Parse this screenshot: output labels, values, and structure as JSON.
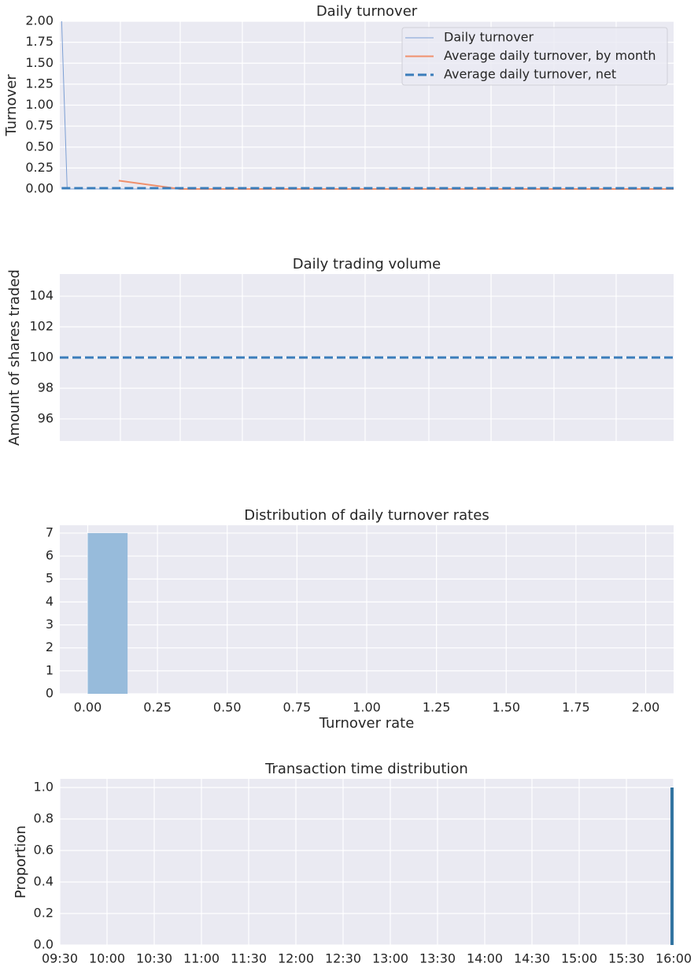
{
  "chart_data": [
    {
      "type": "line",
      "title": "Daily turnover",
      "ylabel": "Turnover",
      "x": [
        0.3,
        1.2,
        9.6,
        19.6,
        100
      ],
      "xlim": [
        0,
        100
      ],
      "ylim": [
        0,
        2
      ],
      "yticks": [
        {
          "value": 0,
          "label": "0.00"
        },
        0.25,
        {
          "value": 0.5,
          "label": "0.50"
        },
        0.75,
        {
          "value": 1,
          "label": "1.00"
        },
        1.25,
        {
          "value": 1.5,
          "label": "1.50"
        },
        1.75,
        {
          "value": 2,
          "label": "2.00"
        }
      ],
      "grid": true,
      "legend": "upper right",
      "series": [
        {
          "name": "Daily turnover",
          "color": "#7c9fd4",
          "linestyle": "solid",
          "linewidth": 1,
          "values": [
            2.0,
            0.0,
            0.0,
            0.0,
            0.0
          ]
        },
        {
          "name": "Average daily turnover, by month",
          "color": "#f0906c",
          "linestyle": "solid",
          "linewidth": 2,
          "values": [
            null,
            null,
            0.1,
            0.0,
            0.0
          ]
        },
        {
          "name": "Average daily turnover, net",
          "color": "#3b7dbb",
          "linestyle": "dashed",
          "linewidth": 3,
          "values": [
            0.01,
            0.01,
            0.01,
            0.01,
            0.01
          ]
        }
      ]
    },
    {
      "type": "line",
      "title": "Daily trading volume",
      "ylabel": "Amount of shares traded",
      "x": [
        0,
        100
      ],
      "xlim": [
        0,
        100
      ],
      "ylim": [
        94.56,
        105.44
      ],
      "yticks": [
        96,
        98,
        100,
        102,
        104
      ],
      "grid": true,
      "series": [
        {
          "color": "#3b7dbb",
          "linestyle": "dashed",
          "linewidth": 3,
          "values": [
            100,
            100
          ]
        }
      ]
    },
    {
      "type": "histogram",
      "title": "Distribution of daily turnover rates",
      "xlabel": "Turnover rate",
      "bins": [
        0,
        0.1429,
        0.2857,
        0.4286,
        0.5714,
        0.7143,
        0.8571,
        1.0,
        1.1429,
        1.2857,
        1.4286,
        1.5714,
        1.7143,
        1.8571,
        2.0
      ],
      "values": [
        7,
        0,
        0,
        0,
        0,
        0,
        0,
        0,
        0,
        0,
        0,
        0,
        0,
        0
      ],
      "color": "#97bbdb",
      "xlim": [
        -0.1,
        2.1
      ],
      "xticks": [
        {
          "value": 0,
          "label": "0.00"
        },
        0.25,
        {
          "value": 0.5,
          "label": "0.50"
        },
        0.75,
        {
          "value": 1,
          "label": "1.00"
        },
        1.25,
        {
          "value": 1.5,
          "label": "1.50"
        },
        1.75,
        {
          "value": 2,
          "label": "2.00"
        }
      ],
      "ylim": [
        0,
        7.34
      ],
      "yticks": [
        0,
        1,
        2,
        3,
        4,
        5,
        6,
        7
      ],
      "grid": true
    },
    {
      "type": "bar",
      "title": "Transaction time distribution",
      "ylabel": "Proportion",
      "x": [
        960
      ],
      "values": [
        1.0
      ],
      "color": "#3274a1",
      "xlim": [
        570,
        960
      ],
      "xticks": [
        {
          "value": 570,
          "label": "09:30"
        },
        {
          "value": 600,
          "label": "10:00"
        },
        {
          "value": 630,
          "label": "10:30"
        },
        {
          "value": 660,
          "label": "11:00"
        },
        {
          "value": 690,
          "label": "11:30"
        },
        {
          "value": 720,
          "label": "12:00"
        },
        {
          "value": 750,
          "label": "12:30"
        },
        {
          "value": 780,
          "label": "13:00"
        },
        {
          "value": 810,
          "label": "13:30"
        },
        {
          "value": 840,
          "label": "14:00"
        },
        {
          "value": 870,
          "label": "14:30"
        },
        {
          "value": 900,
          "label": "15:00"
        },
        {
          "value": 930,
          "label": "15:30"
        },
        {
          "value": 960,
          "label": "16:00"
        }
      ],
      "ylim": [
        0,
        1.055
      ],
      "yticks": [
        {
          "value": 0,
          "label": "0.0"
        },
        0.2,
        0.4,
        0.6,
        0.8,
        {
          "value": 1,
          "label": "1.0"
        }
      ],
      "grid": true
    }
  ]
}
